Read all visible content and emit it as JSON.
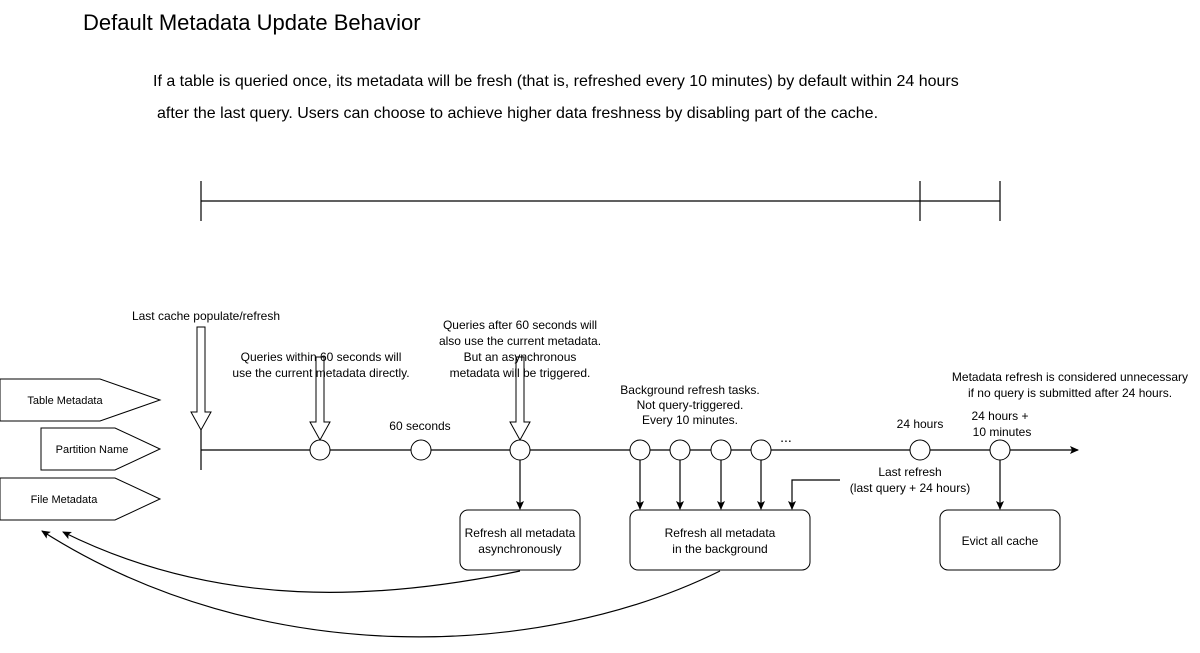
{
  "title": "Default Metadata Update Behavior",
  "description": [
    "If a table is queried once, its metadata will be fresh (that is, refreshed every 10 minutes) by default within 24 hours",
    "after the last query. Users can choose to achieve higher data freshness by disabling part of the cache."
  ],
  "cache_parts": [
    "Table Metadata",
    "Partition Name",
    "File Metadata"
  ],
  "annotations": {
    "last_populate": "Last cache populate/refresh",
    "within_60": [
      "Queries within 60 seconds will",
      "use the current metadata directly."
    ],
    "sixty_seconds": "60 seconds",
    "after_60": [
      "Queries after 60 seconds will",
      "also use the current metadata.",
      "But an asynchronous",
      "metadata will be triggered."
    ],
    "background": [
      "Background refresh tasks.",
      "Not query-triggered.",
      "Every 10 minutes."
    ],
    "ellipsis": "...",
    "hours_24": "24 hours",
    "hours_24_10": [
      "24 hours +",
      "10 minutes"
    ],
    "unnecessary": [
      "Metadata refresh is considered unnecessary",
      "if no query is submitted after 24 hours."
    ],
    "last_refresh": [
      "Last refresh",
      "(last query + 24 hours)"
    ]
  },
  "boxes": {
    "async": [
      "Refresh all metadata",
      "asynchronously"
    ],
    "background": [
      "Refresh all metadata",
      "in the background"
    ],
    "evict": "Evict all cache"
  }
}
